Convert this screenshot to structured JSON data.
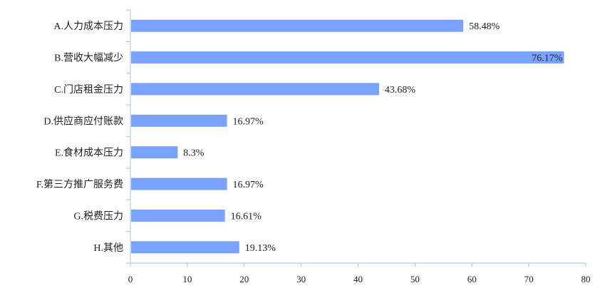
{
  "chart_data": {
    "type": "bar",
    "orientation": "horizontal",
    "categories": [
      "A.人力成本压力",
      "B.营收大幅减少",
      "C.门店租金压力",
      "D.供应商应付账款",
      "E.食材成本压力",
      "F.第三方推广服务费",
      "G.税费压力",
      "H.其他"
    ],
    "values": [
      58.48,
      76.17,
      43.68,
      16.97,
      8.3,
      16.97,
      16.61,
      19.13
    ],
    "data_labels": [
      "58.48%",
      "76.17%",
      "43.68%",
      "16.97%",
      "8.3%",
      "16.97%",
      "16.61%",
      "19.13%"
    ],
    "xlim": [
      0,
      80
    ],
    "xticks": [
      0,
      10,
      20,
      30,
      40,
      50,
      60,
      70,
      80
    ],
    "title": "",
    "xlabel": "",
    "ylabel": "",
    "grid": false,
    "legend": "none",
    "colors": {
      "bar": "#7aa2ff",
      "axis": "#b8cbe0",
      "text": "#222222"
    }
  }
}
